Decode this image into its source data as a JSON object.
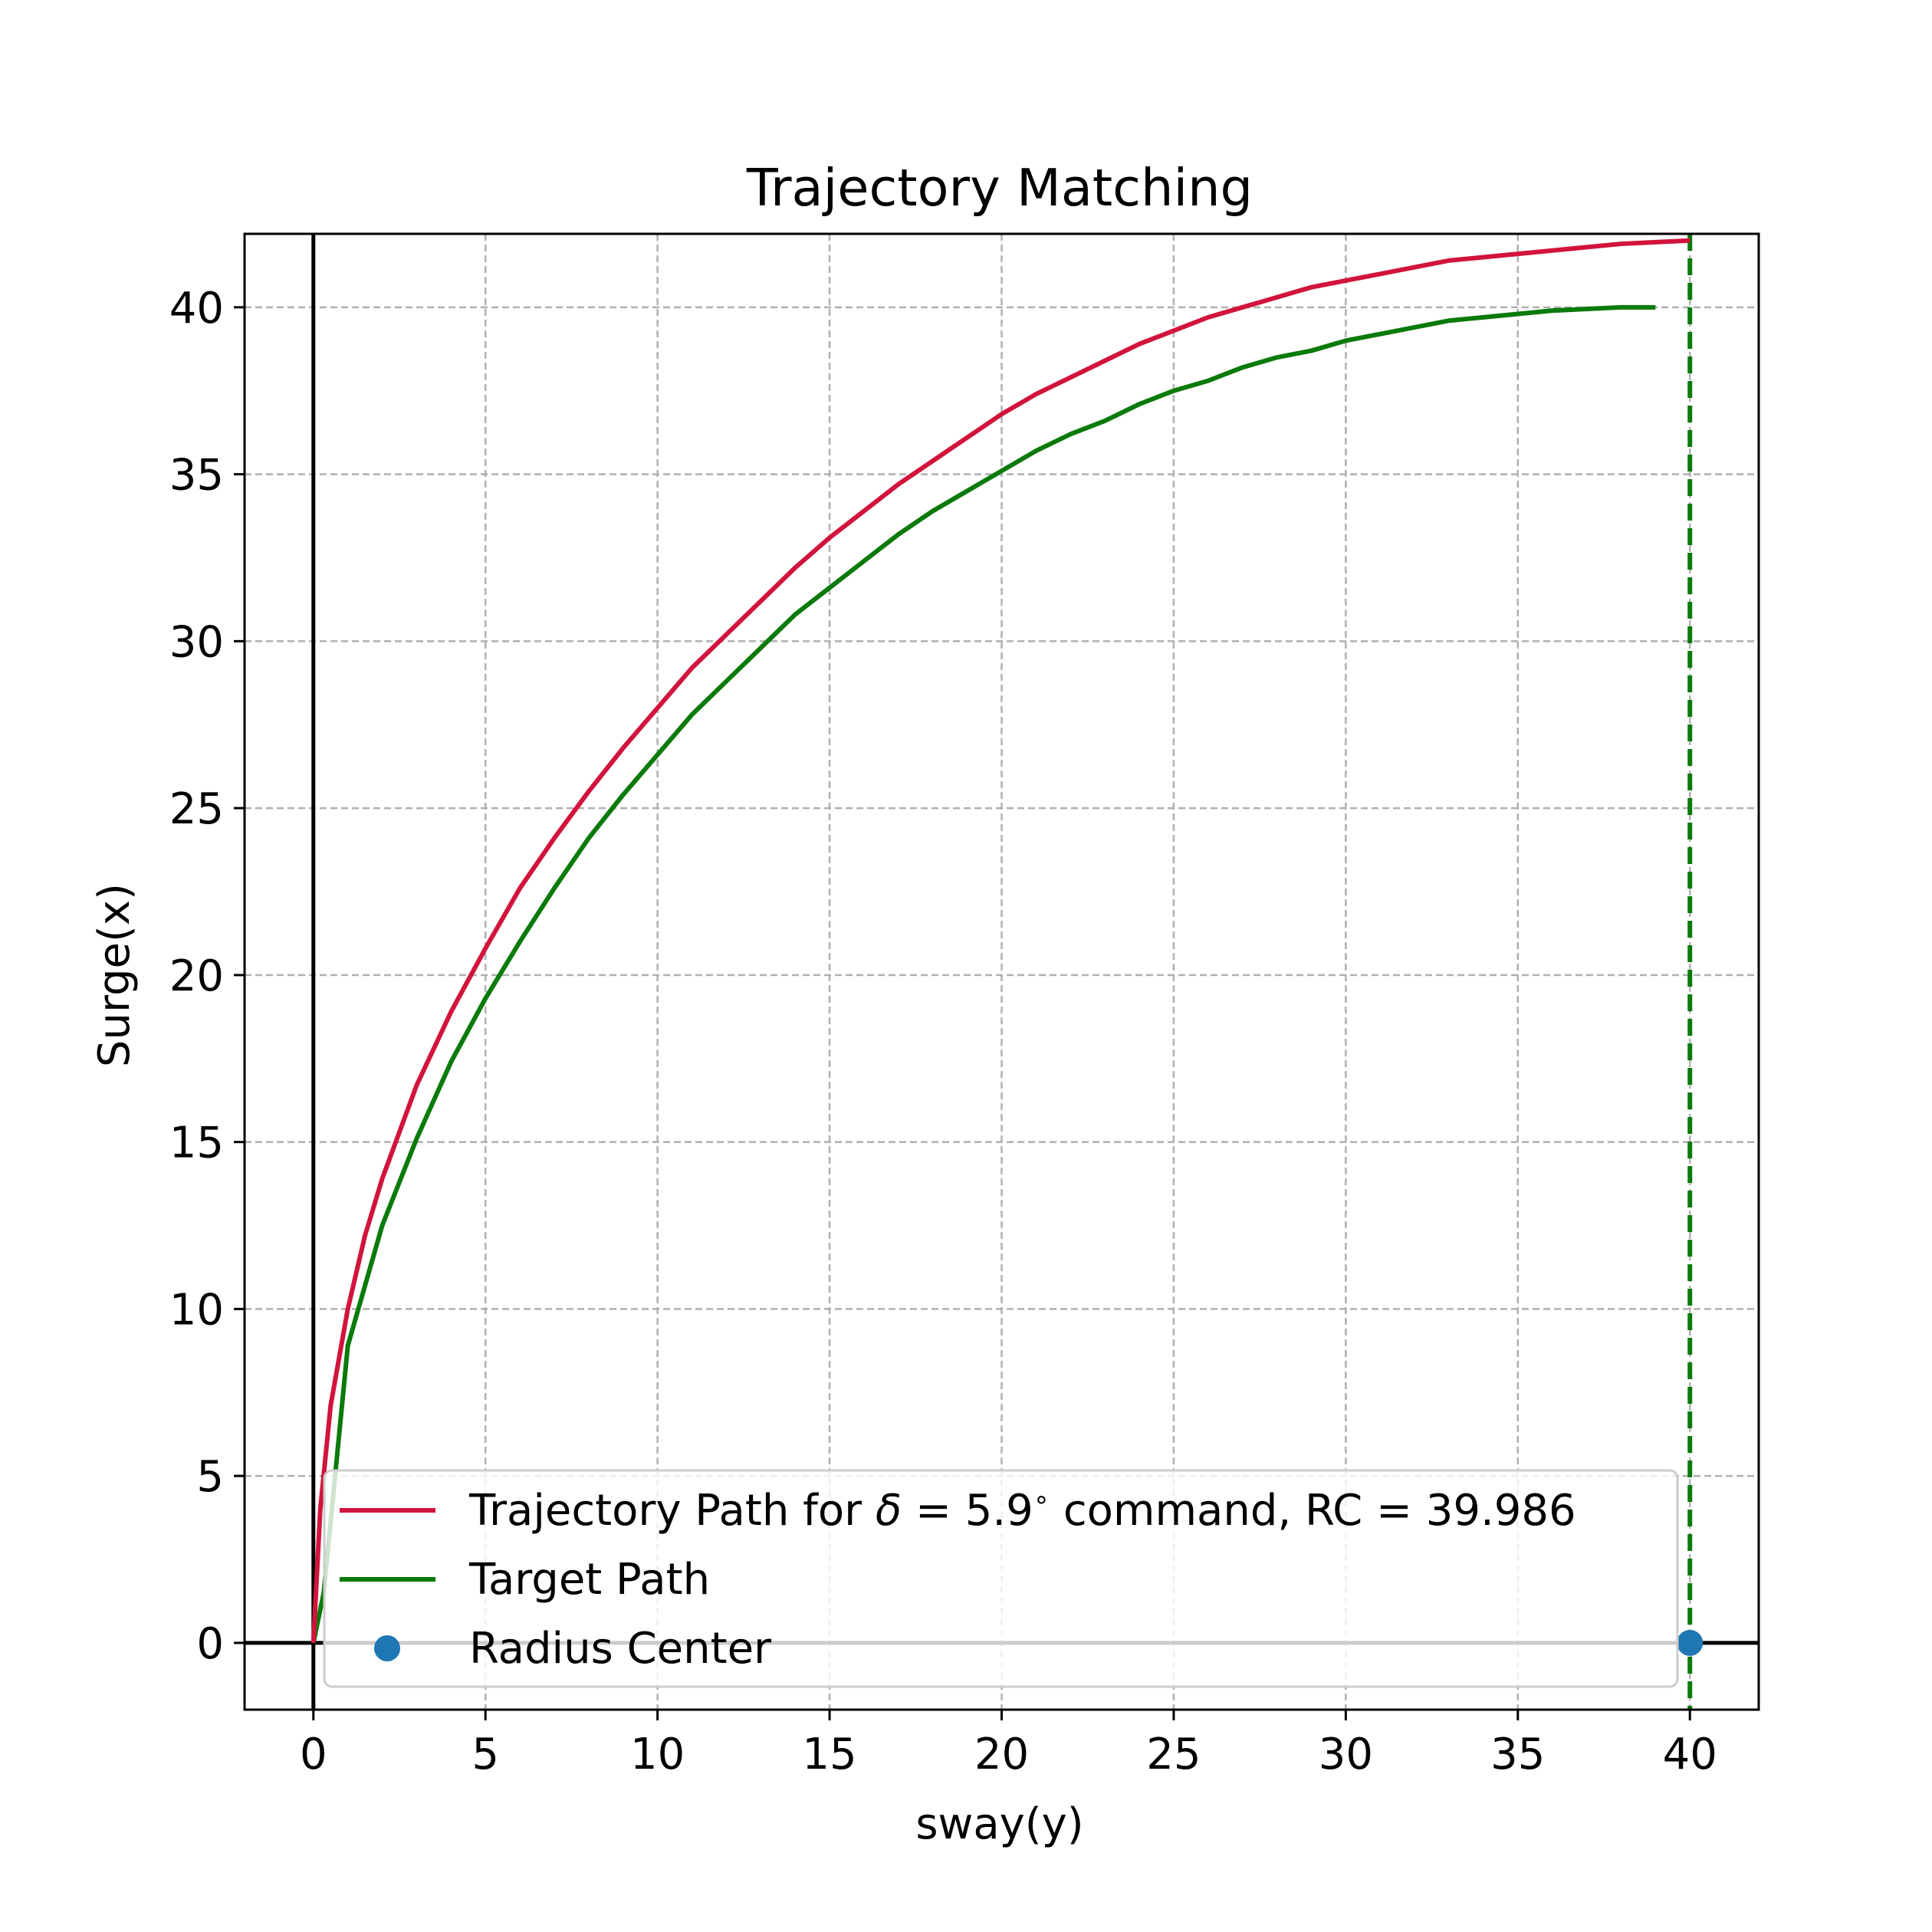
{
  "chart_data": {
    "type": "line",
    "title": "Trajectory Matching",
    "xlabel": "sway(y)",
    "ylabel": "Surge(x)",
    "xlim": [
      -2,
      42
    ],
    "ylim": [
      -2,
      42.2
    ],
    "xticks": [
      0,
      5,
      10,
      15,
      20,
      25,
      30,
      35,
      40
    ],
    "yticks": [
      0,
      5,
      10,
      15,
      20,
      25,
      30,
      35,
      40
    ],
    "xtick_labels": [
      "0",
      "5",
      "10",
      "15",
      "20",
      "25",
      "30",
      "35",
      "40"
    ],
    "ytick_labels": [
      "0",
      "5",
      "10",
      "15",
      "20",
      "25",
      "30",
      "35",
      "40"
    ],
    "grid": true,
    "legend_position": "lower center",
    "reference_lines": [
      {
        "type": "hline",
        "y": 0,
        "color": "#000000",
        "style": "solid"
      },
      {
        "type": "vline",
        "x": 0,
        "color": "#000000",
        "style": "solid"
      },
      {
        "type": "vline",
        "x": 40,
        "color": "#0a7a0a",
        "style": "dashed"
      }
    ],
    "series": [
      {
        "name": "Trajectory Path for δ = 5.9° command, RC = 39.986",
        "name_parts": {
          "prefix": "Trajectory Path for ",
          "symbol": "δ",
          "middle": " = 5.9",
          "degree": "∘",
          "suffix": " command, RC = 39.986"
        },
        "color": "#d2143c",
        "style": "line",
        "x": [
          0,
          0.2,
          0.5,
          1.0,
          1.5,
          2.0,
          3.0,
          4.0,
          5.0,
          6.0,
          7.0,
          8.0,
          9.0,
          10.0,
          11.0,
          12.0,
          13.0,
          14.0,
          15.0,
          16.0,
          17.0,
          18.0,
          19.0,
          20.0,
          21.0,
          22.0,
          23.0,
          24.0,
          25.0,
          26.0,
          27.0,
          28.0,
          29.0,
          30.0,
          31.0,
          32.0,
          33.0,
          34.0,
          35.0,
          36.0,
          37.0,
          38.0,
          39.0,
          40.0
        ],
        "y": [
          0,
          4.0,
          7.1,
          10.0,
          12.2,
          13.9,
          16.7,
          18.9,
          20.8,
          22.6,
          24.1,
          25.5,
          26.8,
          28.0,
          29.2,
          30.2,
          31.2,
          32.2,
          33.1,
          33.9,
          34.7,
          35.4,
          36.1,
          36.8,
          37.4,
          37.9,
          38.4,
          38.9,
          39.3,
          39.7,
          40.0,
          40.3,
          40.6,
          40.8,
          41.0,
          41.2,
          41.4,
          41.5,
          41.6,
          41.7,
          41.8,
          41.9,
          41.95,
          42.0
        ],
        "y_rescaled_note": ""
      },
      {
        "name": "Target Path",
        "color": "#0a7a0a",
        "style": "line",
        "x": [
          0,
          0.3,
          1.0,
          2.0,
          3.0,
          4.0,
          5.0,
          6.0,
          7.0,
          8.0,
          9.0,
          10.0,
          11.0,
          12.0,
          13.0,
          14.0,
          15.0,
          16.0,
          17.0,
          18.0,
          19.0,
          20.0,
          21.0,
          22.0,
          23.0,
          24.0,
          25.0,
          26.0,
          27.0,
          28.0,
          29.0,
          30.0,
          31.0,
          32.0,
          33.0,
          34.0,
          35.0,
          36.0,
          37.0,
          38.0,
          39.0
        ],
        "y": [
          0,
          1.5,
          8.9,
          12.5,
          15.1,
          17.4,
          19.3,
          21.0,
          22.6,
          24.1,
          25.4,
          26.6,
          27.8,
          28.8,
          29.8,
          30.8,
          31.6,
          32.4,
          33.2,
          33.9,
          34.5,
          35.1,
          35.7,
          36.2,
          36.6,
          37.1,
          37.5,
          37.8,
          38.2,
          38.5,
          38.7,
          39.0,
          39.2,
          39.4,
          39.6,
          39.7,
          39.8,
          39.9,
          39.95,
          40.0,
          40.0
        ]
      },
      {
        "name": "Radius Center",
        "color": "#1f77b4",
        "style": "scatter",
        "x": [
          40
        ],
        "y": [
          0
        ]
      }
    ]
  }
}
